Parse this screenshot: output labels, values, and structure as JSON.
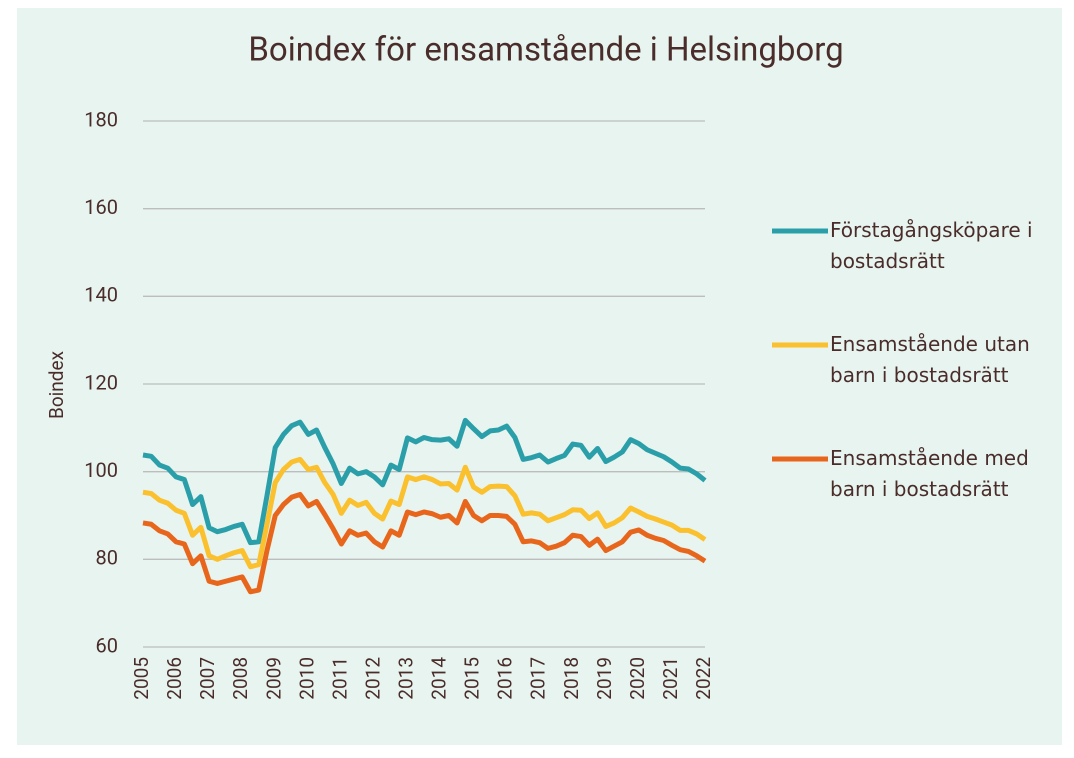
{
  "chart_data": {
    "type": "line",
    "title": "Boindex för ensamstående i Helsingborg",
    "ylabel": "Boindex",
    "categories": [
      "2005",
      null,
      null,
      null,
      "2006",
      null,
      null,
      null,
      "2007",
      null,
      null,
      null,
      "2008",
      null,
      null,
      null,
      "2009",
      null,
      null,
      null,
      "2010",
      null,
      null,
      null,
      "2011",
      null,
      null,
      null,
      "2012",
      null,
      null,
      null,
      "2013",
      null,
      null,
      null,
      "2014",
      null,
      null,
      null,
      "2015",
      null,
      null,
      null,
      "2016",
      null,
      null,
      null,
      "2017",
      null,
      null,
      null,
      "2018",
      null,
      null,
      null,
      "2019",
      null,
      null,
      null,
      "2020",
      null,
      null,
      null,
      "2021",
      null,
      null,
      null,
      "2022"
    ],
    "series": [
      {
        "name": "Förstagångsköpare i bostadsrätt",
        "color": "#2b9fa9",
        "values": [
          103.8,
          103.5,
          101.5,
          100.8,
          98.8,
          98.2,
          92.5,
          94.3,
          87.2,
          86.3,
          86.8,
          87.5,
          88.0,
          83.8,
          84.0,
          94.5,
          105.5,
          108.5,
          110.5,
          111.3,
          108.5,
          109.5,
          105.5,
          101.8,
          97.3,
          100.8,
          99.5,
          100.0,
          98.8,
          97.0,
          101.5,
          100.5,
          107.7,
          106.8,
          107.8,
          107.3,
          107.2,
          107.5,
          105.8,
          111.7,
          109.8,
          108.0,
          109.3,
          109.5,
          110.4,
          107.8,
          102.8,
          103.2,
          103.8,
          102.2,
          103.0,
          103.7,
          106.3,
          106.0,
          103.3,
          105.3,
          102.3,
          103.3,
          104.5,
          107.3,
          106.4,
          105.0,
          104.2,
          103.4,
          102.2,
          100.8,
          100.6,
          99.5,
          98.0
        ]
      },
      {
        "name": "Ensamstående utan barn i bostadsrätt",
        "color": "#fbc02d",
        "values": [
          95.3,
          95.0,
          93.5,
          92.8,
          91.2,
          90.5,
          85.5,
          87.3,
          80.8,
          80.0,
          80.8,
          81.5,
          82.0,
          78.3,
          78.8,
          88.0,
          97.5,
          100.5,
          102.2,
          102.8,
          100.5,
          101.0,
          97.5,
          94.8,
          90.5,
          93.5,
          92.3,
          93.0,
          90.5,
          89.2,
          93.3,
          92.5,
          98.8,
          98.2,
          98.8,
          98.2,
          97.2,
          97.3,
          95.8,
          101.0,
          96.5,
          95.3,
          96.6,
          96.7,
          96.6,
          94.5,
          90.3,
          90.6,
          90.3,
          88.8,
          89.5,
          90.2,
          91.3,
          91.2,
          89.3,
          90.6,
          87.5,
          88.3,
          89.5,
          91.7,
          90.8,
          89.8,
          89.2,
          88.5,
          87.8,
          86.6,
          86.6,
          85.8,
          84.5
        ]
      },
      {
        "name": "Ensamstående med barn i bostadsrätt",
        "color": "#e8661c",
        "values": [
          88.3,
          88.0,
          86.5,
          85.8,
          84.0,
          83.5,
          79.0,
          80.8,
          75.0,
          74.5,
          75.0,
          75.5,
          76.0,
          72.6,
          73.0,
          82.0,
          90.0,
          92.5,
          94.2,
          94.8,
          92.2,
          93.2,
          90.2,
          87.0,
          83.5,
          86.5,
          85.5,
          86.0,
          84.0,
          82.8,
          86.5,
          85.5,
          90.8,
          90.2,
          90.8,
          90.4,
          89.6,
          90.0,
          88.3,
          93.2,
          90.0,
          88.8,
          90.0,
          90.0,
          89.8,
          88.0,
          84.0,
          84.2,
          83.8,
          82.5,
          83.0,
          83.8,
          85.5,
          85.2,
          83.2,
          84.6,
          82.0,
          83.0,
          84.0,
          86.2,
          86.7,
          85.5,
          84.8,
          84.3,
          83.2,
          82.2,
          81.8,
          80.8,
          79.6
        ]
      }
    ],
    "ylim": [
      60,
      180
    ],
    "yticks": [
      60,
      80,
      100,
      120,
      140,
      160,
      180
    ],
    "grid": true,
    "legend": "right"
  }
}
